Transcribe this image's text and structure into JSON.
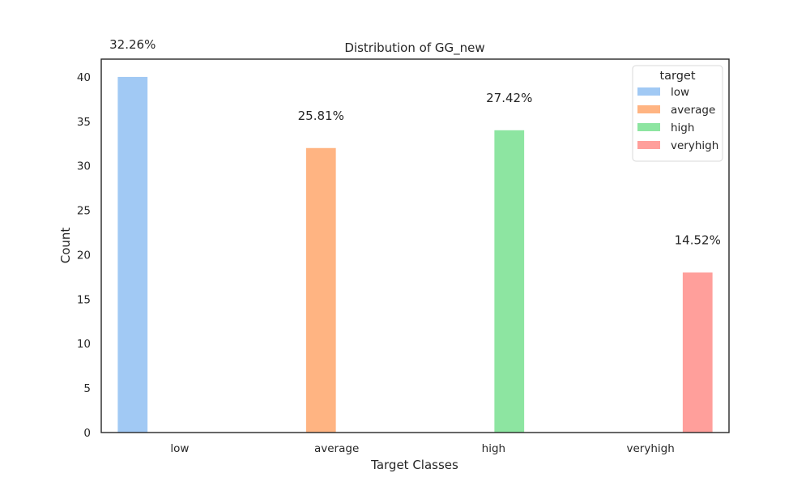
{
  "chart_data": {
    "type": "bar",
    "title": "Distribution of GG_new",
    "xlabel": "Target Classes",
    "ylabel": "Count",
    "categories": [
      "low",
      "average",
      "high",
      "veryhigh"
    ],
    "ylim": [
      0,
      42
    ],
    "yticks": [
      0,
      5,
      10,
      15,
      20,
      25,
      30,
      35,
      40
    ],
    "grid": false,
    "legend": {
      "title": "target",
      "placement": "top-right"
    },
    "series": [
      {
        "name": "low",
        "color": "#a1c9f4",
        "values": [
          40,
          0,
          0,
          0
        ]
      },
      {
        "name": "average",
        "color": "#ffb482",
        "values": [
          0,
          32,
          0,
          0
        ]
      },
      {
        "name": "high",
        "color": "#8de5a1",
        "values": [
          0,
          0,
          34,
          0
        ]
      },
      {
        "name": "veryhigh",
        "color": "#ff9f9b",
        "values": [
          0,
          0,
          0,
          18
        ]
      }
    ],
    "annotations": [
      "32.26%",
      "25.81%",
      "27.42%",
      "14.52%"
    ]
  }
}
